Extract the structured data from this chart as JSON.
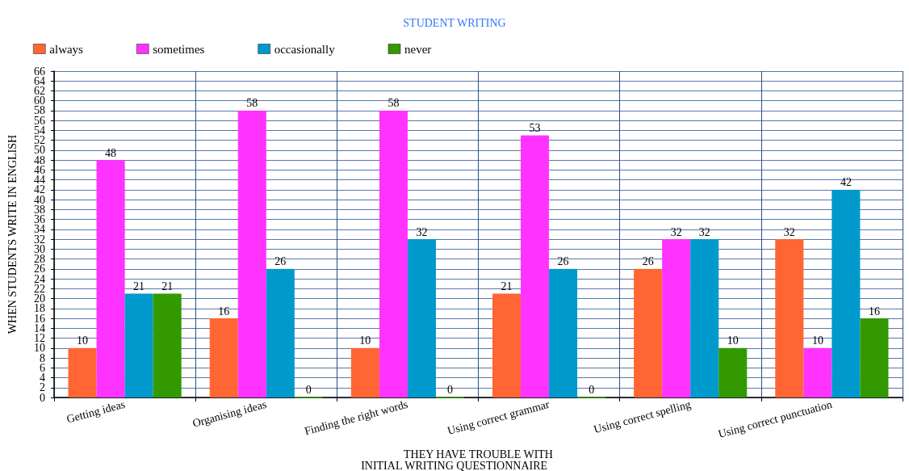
{
  "chart_data": {
    "type": "bar",
    "title": "STUDENT WRITING",
    "xlabel": "THEY HAVE TROUBLE WITH",
    "ylabel": "WHEN STUDENTS WRITE IN ENGLISH",
    "annotations": [
      "INITIAL WRITING QUESTIONNAIRE"
    ],
    "categories": [
      "Getting ideas",
      "Organising ideas",
      "Finding the right words",
      "Using correct grammar",
      "Using correct spelling",
      "Using correct punctuation"
    ],
    "series": [
      {
        "name": "always",
        "color": "#ff6633",
        "values": [
          10,
          16,
          10,
          21,
          26,
          32
        ]
      },
      {
        "name": "sometimes",
        "color": "#ff33ff",
        "values": [
          48,
          58,
          58,
          53,
          32,
          10
        ]
      },
      {
        "name": "occasionally",
        "color": "#0099cc",
        "values": [
          21,
          26,
          32,
          26,
          32,
          42
        ]
      },
      {
        "name": "never",
        "color": "#339900",
        "values": [
          21,
          0,
          0,
          0,
          10,
          16
        ]
      }
    ],
    "ylim": [
      0,
      66
    ],
    "yticks": [
      0,
      2,
      4,
      6,
      8,
      10,
      12,
      14,
      16,
      18,
      20,
      22,
      24,
      26,
      28,
      30,
      32,
      34,
      36,
      38,
      40,
      42,
      44,
      46,
      48,
      50,
      52,
      54,
      56,
      58,
      60,
      62,
      64,
      66
    ],
    "grid": true,
    "legend": "top left",
    "data_labels": true
  }
}
